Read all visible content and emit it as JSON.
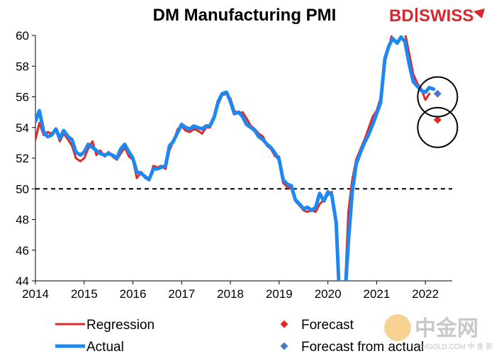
{
  "chart_data": {
    "type": "line",
    "title": "DM Manufacturing PMI",
    "xlabel": "",
    "ylabel": "",
    "ylim": [
      44,
      60
    ],
    "yticks": [
      44,
      46,
      48,
      50,
      52,
      54,
      56,
      58,
      60
    ],
    "xlim": [
      2014,
      2022.55
    ],
    "xticks": [
      "2014",
      "2015",
      "2016",
      "2017",
      "2018",
      "2019",
      "2020",
      "2021",
      "2022"
    ],
    "reference_line": {
      "y": 50,
      "style": "dashed",
      "color": "#000000"
    },
    "legend_position": "bottom",
    "series": [
      {
        "name": "Regression",
        "kind": "line",
        "color": "#e02828",
        "x": [
          2014.0,
          2014.08,
          2014.17,
          2014.25,
          2014.33,
          2014.42,
          2014.5,
          2014.58,
          2014.67,
          2014.75,
          2014.83,
          2014.92,
          2015.0,
          2015.08,
          2015.17,
          2015.25,
          2015.33,
          2015.42,
          2015.5,
          2015.58,
          2015.67,
          2015.75,
          2015.83,
          2015.92,
          2016.0,
          2016.08,
          2016.17,
          2016.25,
          2016.33,
          2016.42,
          2016.5,
          2016.58,
          2016.67,
          2016.75,
          2016.83,
          2016.92,
          2017.0,
          2017.08,
          2017.17,
          2017.25,
          2017.33,
          2017.42,
          2017.5,
          2017.58,
          2017.67,
          2017.75,
          2017.83,
          2017.92,
          2018.0,
          2018.08,
          2018.17,
          2018.25,
          2018.33,
          2018.42,
          2018.5,
          2018.58,
          2018.67,
          2018.75,
          2018.83,
          2018.92,
          2019.0,
          2019.08,
          2019.17,
          2019.25,
          2019.33,
          2019.42,
          2019.5,
          2019.58,
          2019.67,
          2019.75,
          2019.83,
          2019.92,
          2020.0,
          2020.08,
          2020.17,
          2020.25,
          2020.33,
          2020.42,
          2020.5,
          2020.58,
          2020.67,
          2020.75,
          2020.83,
          2020.92,
          2021.0,
          2021.08,
          2021.17,
          2021.25,
          2021.33,
          2021.42,
          2021.5,
          2021.58,
          2021.67,
          2021.75,
          2021.83,
          2021.92,
          2022.0,
          2022.08
        ],
        "values": [
          53.2,
          54.3,
          53.5,
          53.7,
          53.6,
          53.8,
          53.1,
          53.6,
          53.2,
          52.8,
          52.0,
          51.8,
          52.0,
          52.6,
          53.1,
          52.2,
          52.5,
          52.1,
          52.4,
          52.1,
          51.9,
          52.3,
          52.7,
          52.1,
          51.9,
          50.7,
          51.1,
          50.7,
          50.6,
          51.5,
          51.4,
          51.5,
          51.3,
          52.5,
          53.1,
          53.9,
          54.1,
          53.8,
          53.7,
          53.9,
          53.8,
          53.6,
          54.0,
          54.0,
          54.6,
          55.5,
          56.1,
          56.2,
          55.9,
          55.1,
          54.9,
          55.0,
          54.6,
          54.1,
          53.9,
          53.6,
          53.4,
          52.8,
          52.6,
          52.1,
          52.1,
          50.4,
          50.1,
          50.0,
          49.2,
          48.9,
          48.6,
          48.5,
          48.6,
          48.5,
          49.0,
          49.3,
          49.6,
          49.8,
          47.5,
          42.0,
          42.0,
          48.5,
          50.6,
          51.9,
          52.6,
          53.2,
          53.9,
          54.7,
          55.1,
          55.9,
          58.3,
          59.2,
          60.3,
          60.5,
          60.0,
          60.2,
          58.8,
          57.5,
          56.9,
          56.5,
          55.8,
          56.2
        ]
      },
      {
        "name": "Actual",
        "kind": "line",
        "color": "#1e88f0",
        "x": [
          2014.0,
          2014.08,
          2014.17,
          2014.25,
          2014.33,
          2014.42,
          2014.5,
          2014.58,
          2014.67,
          2014.75,
          2014.83,
          2014.92,
          2015.0,
          2015.08,
          2015.17,
          2015.25,
          2015.33,
          2015.42,
          2015.5,
          2015.58,
          2015.67,
          2015.75,
          2015.83,
          2015.92,
          2016.0,
          2016.08,
          2016.17,
          2016.25,
          2016.33,
          2016.42,
          2016.5,
          2016.58,
          2016.67,
          2016.75,
          2016.83,
          2016.92,
          2017.0,
          2017.08,
          2017.17,
          2017.25,
          2017.33,
          2017.42,
          2017.5,
          2017.58,
          2017.67,
          2017.75,
          2017.83,
          2017.92,
          2018.0,
          2018.08,
          2018.17,
          2018.25,
          2018.33,
          2018.42,
          2018.5,
          2018.58,
          2018.67,
          2018.75,
          2018.83,
          2018.92,
          2019.0,
          2019.08,
          2019.17,
          2019.25,
          2019.33,
          2019.42,
          2019.5,
          2019.58,
          2019.67,
          2019.75,
          2019.83,
          2019.92,
          2020.0,
          2020.08,
          2020.17,
          2020.25,
          2020.33,
          2020.42,
          2020.5,
          2020.58,
          2020.67,
          2020.75,
          2020.83,
          2020.92,
          2021.0,
          2021.08,
          2021.17,
          2021.25,
          2021.33,
          2021.42,
          2021.5,
          2021.58,
          2021.67,
          2021.75,
          2021.83,
          2021.92,
          2022.0,
          2022.08,
          2022.17
        ],
        "values": [
          54.4,
          55.1,
          53.7,
          53.4,
          53.5,
          53.9,
          53.3,
          53.8,
          53.4,
          53.2,
          52.4,
          52.2,
          52.4,
          52.9,
          52.7,
          52.5,
          52.3,
          52.2,
          52.3,
          52.2,
          52.0,
          52.6,
          52.9,
          52.4,
          52.0,
          51.1,
          51.0,
          50.8,
          50.6,
          51.3,
          51.3,
          51.4,
          51.5,
          52.8,
          53.1,
          53.7,
          54.2,
          54.0,
          53.9,
          54.1,
          54.0,
          53.9,
          54.1,
          54.1,
          54.7,
          55.7,
          56.2,
          56.3,
          55.7,
          54.9,
          55.0,
          54.7,
          54.2,
          54.0,
          53.8,
          53.4,
          53.2,
          52.9,
          52.7,
          52.3,
          51.9,
          50.6,
          50.3,
          50.2,
          49.3,
          49.0,
          48.7,
          48.8,
          48.6,
          48.8,
          49.7,
          49.2,
          49.8,
          49.6,
          47.8,
          42.0,
          42.0,
          46.5,
          49.8,
          51.6,
          52.4,
          53.0,
          53.5,
          54.2,
          54.9,
          55.6,
          58.5,
          59.3,
          59.8,
          59.5,
          59.9,
          59.6,
          58.1,
          57.0,
          56.7,
          56.4,
          56.3,
          56.6,
          56.5
        ]
      },
      {
        "name": "Forecast",
        "kind": "marker",
        "marker": "diamond",
        "color": "#e02828",
        "x": [
          2022.25
        ],
        "values": [
          54.5
        ]
      },
      {
        "name": "Forecast from actual",
        "kind": "marker",
        "marker": "diamond",
        "color": "#4a78c2",
        "x": [
          2022.25
        ],
        "values": [
          56.2
        ]
      }
    ],
    "annotations": [
      {
        "type": "circle",
        "x": 2022.25,
        "y": 56.0
      },
      {
        "type": "circle",
        "x": 2022.25,
        "y": 54.0
      }
    ]
  },
  "brand": {
    "logo_bd": "BD",
    "logo_swiss": "SWISS",
    "color": "#d7262e"
  },
  "watermark": {
    "text": "中金网",
    "sub": "CNGOLD.COM  中 金 新 媒 体"
  }
}
